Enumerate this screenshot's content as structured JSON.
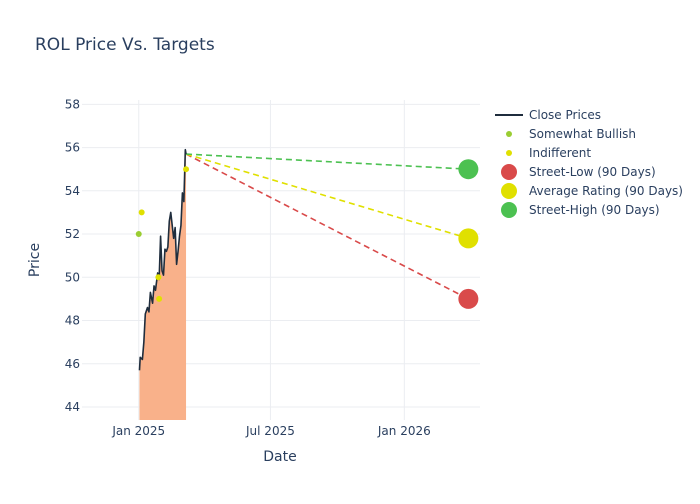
{
  "chart_data": {
    "type": "line",
    "title": "ROL Price Vs. Targets",
    "xlabel": "Date",
    "ylabel": "Price",
    "x_range": [
      "2024-10-15",
      "2026-04-15"
    ],
    "ylim": [
      43.4,
      58.2
    ],
    "x_ticks": [
      {
        "date": "2025-01-01",
        "label": "Jan 2025"
      },
      {
        "date": "2025-07-01",
        "label": "Jul 2025"
      },
      {
        "date": "2026-01-01",
        "label": "Jan 2026"
      }
    ],
    "y_ticks": [
      44,
      46,
      48,
      50,
      52,
      54,
      56,
      58
    ],
    "grid": true,
    "legend_position": "top-right",
    "close_prices": {
      "name": "Close Prices",
      "color": "#1f2d3d",
      "fill_color": "#f9b18a",
      "points": [
        [
          "2025-01-02",
          45.7
        ],
        [
          "2025-01-03",
          46.3
        ],
        [
          "2025-01-06",
          46.2
        ],
        [
          "2025-01-07",
          46.6
        ],
        [
          "2025-01-08",
          47.0
        ],
        [
          "2025-01-10",
          48.3
        ],
        [
          "2025-01-13",
          48.6
        ],
        [
          "2025-01-15",
          48.4
        ],
        [
          "2025-01-17",
          49.3
        ],
        [
          "2025-01-20",
          48.8
        ],
        [
          "2025-01-22",
          49.6
        ],
        [
          "2025-01-24",
          49.4
        ],
        [
          "2025-01-27",
          50.2
        ],
        [
          "2025-01-29",
          49.9
        ],
        [
          "2025-01-31",
          51.9
        ],
        [
          "2025-02-02",
          50.3
        ],
        [
          "2025-02-04",
          50.1
        ],
        [
          "2025-02-06",
          51.3
        ],
        [
          "2025-02-08",
          51.2
        ],
        [
          "2025-02-10",
          51.4
        ],
        [
          "2025-02-12",
          52.6
        ],
        [
          "2025-02-14",
          53.0
        ],
        [
          "2025-02-16",
          52.4
        ],
        [
          "2025-02-18",
          51.8
        ],
        [
          "2025-02-20",
          52.3
        ],
        [
          "2025-02-22",
          50.6
        ],
        [
          "2025-02-24",
          51.2
        ],
        [
          "2025-02-26",
          51.9
        ],
        [
          "2025-02-28",
          52.4
        ],
        [
          "2025-03-02",
          53.9
        ],
        [
          "2025-03-04",
          53.5
        ],
        [
          "2025-03-06",
          55.9
        ],
        [
          "2025-03-07",
          55.7
        ]
      ]
    },
    "analyst_ratings": [
      {
        "name": "Somewhat Bullish",
        "color": "#9acd32",
        "points": [
          [
            "2025-01-01",
            52.0
          ]
        ]
      },
      {
        "name": "Indifferent",
        "color": "#e0e000",
        "points": [
          [
            "2025-01-05",
            53.0
          ],
          [
            "2025-01-28",
            50.0
          ],
          [
            "2025-01-29",
            49.0
          ],
          [
            "2025-03-07",
            55.0
          ]
        ]
      }
    ],
    "targets": {
      "start": [
        "2025-03-07",
        55.7
      ],
      "date": "2026-03-30",
      "series": [
        {
          "name": "Street-Low (90 Days)",
          "value": 49.0,
          "color": "#d94a4a"
        },
        {
          "name": "Average Rating (90 Days)",
          "value": 51.8,
          "color": "#e0e000"
        },
        {
          "name": "Street-High (90 Days)",
          "value": 55.0,
          "color": "#4cc151"
        }
      ]
    }
  }
}
